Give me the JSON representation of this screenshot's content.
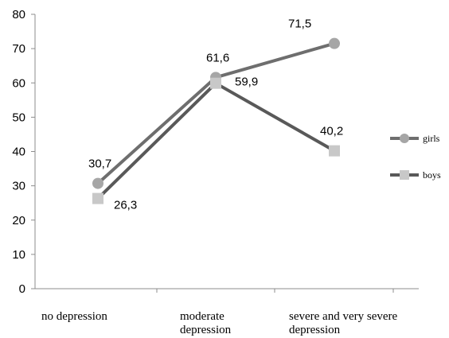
{
  "chart_data": {
    "type": "line",
    "categories": [
      [
        "no depression"
      ],
      [
        "moderate",
        "depression"
      ],
      [
        "severe and very severe",
        "depression"
      ]
    ],
    "series": [
      {
        "name": "girls",
        "values": [
          30.7,
          61.6,
          71.5
        ],
        "labels": [
          "30,7",
          "61,6",
          "71,5"
        ],
        "color": "#6e6e6e",
        "marker": "circle",
        "marker_color": "#a6a6a6"
      },
      {
        "name": "boys",
        "values": [
          26.3,
          59.9,
          40.2
        ],
        "labels": [
          "26,3",
          "59,9",
          "40,2"
        ],
        "color": "#595959",
        "marker": "square",
        "marker_color": "#c8c8c8"
      }
    ],
    "yticks": [
      "0",
      "10",
      "20",
      "30",
      "40",
      "50",
      "60",
      "70",
      "80"
    ],
    "ylim": [
      0,
      80
    ],
    "grid": false,
    "legend": "right"
  }
}
